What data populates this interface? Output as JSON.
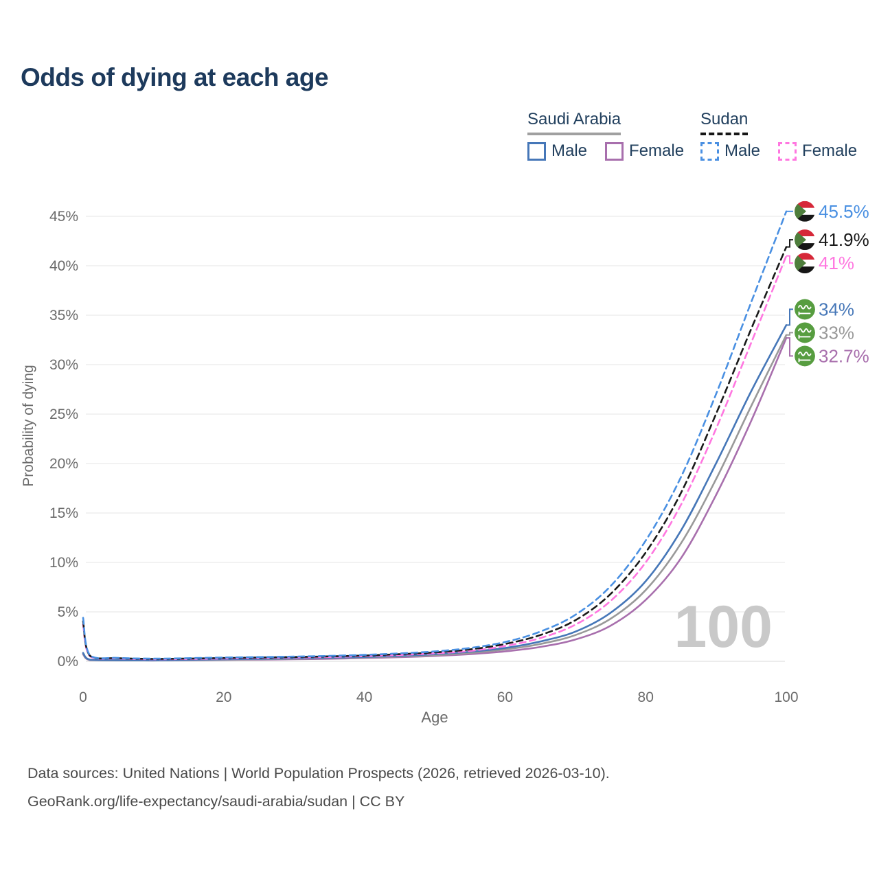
{
  "title": "Odds of dying at each age",
  "legend": {
    "groups": [
      {
        "label": "Saudi Arabia",
        "underline_style": "solid",
        "underline_color": "#a0a0a0",
        "items": [
          {
            "key": "saudi-male",
            "label": "Male",
            "color": "#4677b8",
            "dash": false
          },
          {
            "key": "saudi-female",
            "label": "Female",
            "color": "#a86fad",
            "dash": false
          }
        ]
      },
      {
        "label": "Sudan",
        "underline_style": "dashed",
        "underline_color": "#161616",
        "items": [
          {
            "key": "sudan-male",
            "label": "Male",
            "color": "#4a90e2",
            "dash": true
          },
          {
            "key": "sudan-female",
            "label": "Female",
            "color": "#ff77e0",
            "dash": true
          }
        ]
      }
    ]
  },
  "chart_data": {
    "type": "line",
    "title": "Odds of dying at each age",
    "xlabel": "Age",
    "ylabel": "Probability of dying",
    "xlim": [
      0,
      100
    ],
    "ylim": [
      0,
      46
    ],
    "grid": "horizontal",
    "legend_position": "top-right",
    "x_ticks": [
      "0",
      "20",
      "40",
      "60",
      "80",
      "100"
    ],
    "x_tick_values": [
      0,
      20,
      40,
      60,
      80,
      100
    ],
    "y_ticks": [
      "0%",
      "5%",
      "10%",
      "15%",
      "20%",
      "25%",
      "30%",
      "35%",
      "40%",
      "45%"
    ],
    "y_tick_values": [
      0,
      5,
      10,
      15,
      20,
      25,
      30,
      35,
      40,
      45
    ],
    "x": [
      0,
      1,
      5,
      10,
      15,
      20,
      25,
      30,
      35,
      40,
      45,
      50,
      55,
      60,
      65,
      70,
      75,
      80,
      85,
      90,
      95,
      100
    ],
    "series": [
      {
        "name": "Sudan Male",
        "key": "sudan-male",
        "color": "#4a90e2",
        "dash": true,
        "flag": "sudan",
        "end_label": "45.5%",
        "values": [
          4.4,
          0.6,
          0.35,
          0.27,
          0.32,
          0.38,
          0.43,
          0.48,
          0.55,
          0.65,
          0.8,
          1.0,
          1.35,
          1.95,
          3.0,
          4.7,
          7.6,
          12.2,
          18.6,
          27.0,
          36.3,
          45.5
        ]
      },
      {
        "name": "Sudan Both sexes",
        "key": "sudan-both",
        "color": "#1a1a1a",
        "dash": true,
        "flag": "sudan",
        "end_label": "41.9%",
        "values": [
          4.05,
          0.55,
          0.32,
          0.24,
          0.28,
          0.33,
          0.38,
          0.43,
          0.5,
          0.58,
          0.72,
          0.9,
          1.2,
          1.75,
          2.65,
          4.15,
          6.8,
          11.0,
          17.0,
          25.0,
          33.6,
          41.9
        ]
      },
      {
        "name": "Sudan Female",
        "key": "sudan-female",
        "color": "#ff77e0",
        "dash": true,
        "flag": "sudan",
        "end_label": "41%",
        "values": [
          3.7,
          0.5,
          0.29,
          0.21,
          0.24,
          0.28,
          0.33,
          0.38,
          0.44,
          0.52,
          0.64,
          0.8,
          1.05,
          1.55,
          2.35,
          3.7,
          6.1,
          10.0,
          15.8,
          23.5,
          32.2,
          41.0
        ]
      },
      {
        "name": "Saudi Arabia Male",
        "key": "saudi-male",
        "color": "#4677b8",
        "dash": false,
        "flag": "saudi-arabia",
        "end_label": "34%",
        "values": [
          0.85,
          0.16,
          0.11,
          0.1,
          0.15,
          0.2,
          0.25,
          0.3,
          0.36,
          0.44,
          0.55,
          0.72,
          0.97,
          1.35,
          2.0,
          3.0,
          4.9,
          8.1,
          13.2,
          20.0,
          27.3,
          34.0
        ]
      },
      {
        "name": "Saudi Arabia Both sexes",
        "key": "saudi-both",
        "color": "#999999",
        "dash": false,
        "flag": "saudi-arabia",
        "end_label": "33%",
        "values": [
          0.78,
          0.14,
          0.1,
          0.09,
          0.13,
          0.17,
          0.21,
          0.26,
          0.31,
          0.39,
          0.49,
          0.63,
          0.85,
          1.2,
          1.75,
          2.65,
          4.3,
          7.2,
          11.9,
          18.4,
          25.8,
          33.0
        ]
      },
      {
        "name": "Saudi Arabia Female",
        "key": "saudi-female",
        "color": "#a86fad",
        "dash": false,
        "flag": "saudi-arabia",
        "end_label": "32.7%",
        "values": [
          0.7,
          0.12,
          0.09,
          0.08,
          0.11,
          0.14,
          0.17,
          0.21,
          0.26,
          0.33,
          0.42,
          0.54,
          0.72,
          1.0,
          1.45,
          2.2,
          3.6,
          6.2,
          10.4,
          16.8,
          24.3,
          32.7
        ]
      }
    ],
    "watermark": "100"
  },
  "colors": {
    "title": "#1d3a5c",
    "axis_text": "#6b6b6b",
    "gridline": "#ebebeb",
    "watermark": "#c9c9c9",
    "flag_sudan_red": "#d62839",
    "flag_sudan_black": "#161616",
    "flag_sudan_green": "#4e7e3c",
    "flag_saudi_green": "#579d40"
  },
  "footer": {
    "line1": "Data sources: United Nations | World Population Prospects (2026, retrieved 2026-03-10).",
    "line2": "GeoRank.org/life-expectancy/saudi-arabia/sudan | CC BY"
  }
}
